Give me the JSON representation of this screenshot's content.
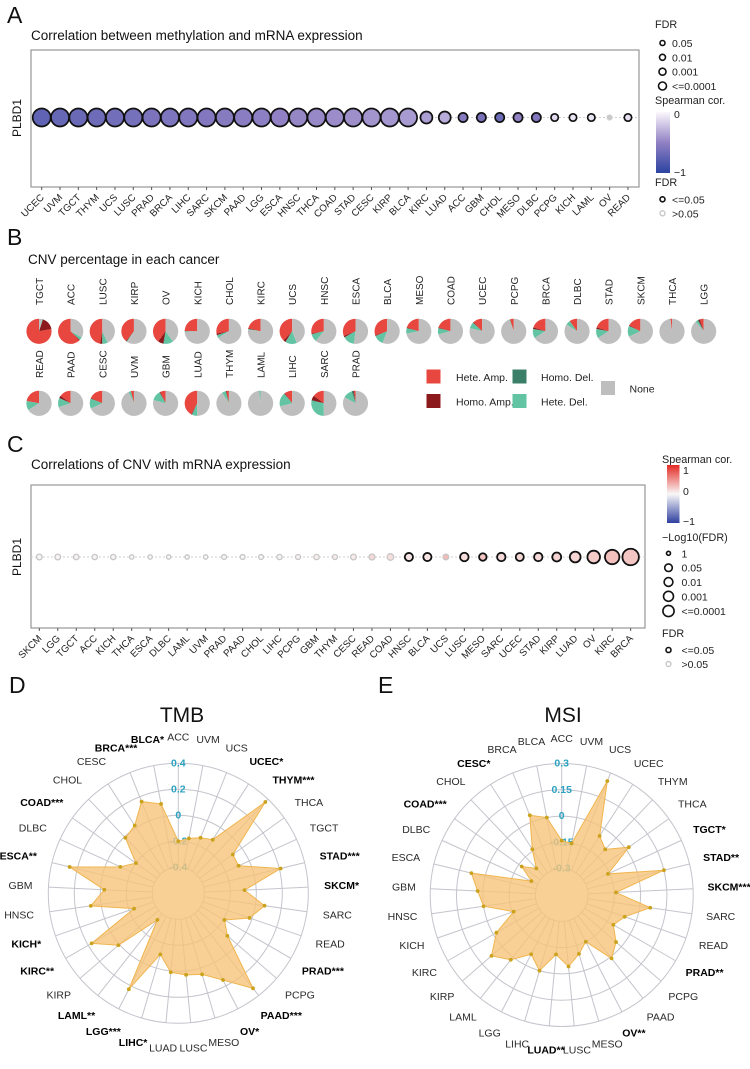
{
  "chart_data": [
    {
      "panel_label": "A",
      "type": "scatter",
      "title": "Correlation between methylation and mRNA expression",
      "xlabel": "",
      "ylabel": "PLBD1",
      "categories": [
        "UCEC",
        "UVM",
        "TGCT",
        "THYM",
        "UCS",
        "LUSC",
        "PRAD",
        "BRCA",
        "LIHC",
        "SARC",
        "SKCM",
        "PAAD",
        "LGG",
        "ESCA",
        "HNSC",
        "THCA",
        "COAD",
        "STAD",
        "CESC",
        "KIRP",
        "BLCA",
        "KIRC",
        "LUAD",
        "ACC",
        "GBM",
        "CHOL",
        "MESO",
        "DLBC",
        "PCPG",
        "KICH",
        "LAML",
        "OV",
        "READ"
      ],
      "spearman": [
        -0.74,
        -0.71,
        -0.69,
        -0.67,
        -0.65,
        -0.63,
        -0.61,
        -0.6,
        -0.58,
        -0.57,
        -0.55,
        -0.53,
        -0.52,
        -0.5,
        -0.48,
        -0.47,
        -0.45,
        -0.44,
        -0.42,
        -0.41,
        -0.39,
        -0.38,
        -0.32,
        -0.55,
        -0.62,
        -0.68,
        -0.5,
        -0.58,
        -0.12,
        -0.08,
        -0.08,
        -0.05,
        -0.1
      ],
      "fdr": [
        "<=0.0001",
        "<=0.0001",
        "<=0.0001",
        "<=0.0001",
        "<=0.0001",
        "<=0.0001",
        "<=0.0001",
        "<=0.0001",
        "<=0.0001",
        "<=0.0001",
        "<=0.0001",
        "<=0.0001",
        "<=0.0001",
        "<=0.0001",
        "<=0.0001",
        "<=0.0001",
        "<=0.0001",
        "<=0.0001",
        "<=0.0001",
        "<=0.0001",
        "<=0.0001",
        "0.001",
        "0.001",
        "0.01",
        "0.01",
        "0.01",
        "0.01",
        "0.01",
        "0.05",
        "0.05",
        "0.05",
        ">0.05",
        "0.05"
      ],
      "significant": [
        true,
        true,
        true,
        true,
        true,
        true,
        true,
        true,
        true,
        true,
        true,
        true,
        true,
        true,
        true,
        true,
        true,
        true,
        true,
        true,
        true,
        true,
        true,
        true,
        true,
        true,
        true,
        true,
        true,
        true,
        true,
        false,
        true
      ],
      "color_scale": {
        "range": [
          -1,
          0
        ],
        "low": "#2B43A0",
        "mid": "#9181C4",
        "high": "#FBF8FD",
        "not_significant": "#C9C9C9"
      },
      "legend": {
        "size_title": "FDR",
        "size_labels": [
          "0.05",
          "0.01",
          "0.001",
          "<=0.0001"
        ],
        "color_title": "Spearman cor.",
        "color_tick_labels": [
          "0",
          "−1"
        ],
        "sig_title": "FDR",
        "sig_labels": [
          "<=0.05",
          ">0.05"
        ]
      }
    },
    {
      "panel_label": "B",
      "type": "pie",
      "title": "CNV percentage in each cancer",
      "series": [
        "Hete. Amp.",
        "Homo. Amp.",
        "Homo. Del.",
        "Hete. Del.",
        "None"
      ],
      "colors": [
        "#E8473F",
        "#8C1A1C",
        "#3B7F69",
        "#63C4A3",
        "#BEBEBE"
      ],
      "categories": [
        "TGCT",
        "ACC",
        "LUSC",
        "KIRP",
        "OV",
        "KICH",
        "CHOL",
        "KIRC",
        "UCS",
        "HNSC",
        "ESCA",
        "BLCA",
        "MESO",
        "COAD",
        "UCEC",
        "PCPG",
        "BRCA",
        "DLBC",
        "STAD",
        "SKCM",
        "THCA",
        "LGG",
        "READ",
        "PAAD",
        "CESC",
        "UVM",
        "GBM",
        "LUAD",
        "THYM",
        "LAML",
        "LIHC",
        "SARC",
        "PRAD"
      ],
      "values": [
        [
          0.78,
          0.17,
          0,
          0.01,
          0.04
        ],
        [
          0.62,
          0.01,
          0,
          0.04,
          0.33
        ],
        [
          0.47,
          0.03,
          0,
          0.07,
          0.43
        ],
        [
          0.39,
          0.01,
          0,
          0.01,
          0.59
        ],
        [
          0.4,
          0.07,
          0.01,
          0.12,
          0.4
        ],
        [
          0.25,
          0,
          0,
          0.01,
          0.74
        ],
        [
          0.28,
          0.02,
          0,
          0.04,
          0.66
        ],
        [
          0.21,
          0.01,
          0,
          0.01,
          0.77
        ],
        [
          0.38,
          0.03,
          0,
          0.15,
          0.44
        ],
        [
          0.28,
          0.01,
          0,
          0.1,
          0.61
        ],
        [
          0.31,
          0.02,
          0,
          0.15,
          0.52
        ],
        [
          0.3,
          0.01,
          0,
          0.13,
          0.56
        ],
        [
          0.2,
          0.01,
          0,
          0.07,
          0.72
        ],
        [
          0.2,
          0.01,
          0,
          0.08,
          0.71
        ],
        [
          0.12,
          0.01,
          0,
          0.08,
          0.79
        ],
        [
          0.05,
          0,
          0,
          0.01,
          0.94
        ],
        [
          0.2,
          0.02,
          0,
          0.12,
          0.66
        ],
        [
          0.1,
          0,
          0,
          0.06,
          0.84
        ],
        [
          0.2,
          0.02,
          0,
          0.12,
          0.66
        ],
        [
          0.17,
          0.01,
          0,
          0.14,
          0.68
        ],
        [
          0.02,
          0,
          0,
          0,
          0.98
        ],
        [
          0.05,
          0.02,
          0.01,
          0.03,
          0.89
        ],
        [
          0.22,
          0,
          0,
          0.12,
          0.66
        ],
        [
          0.15,
          0.03,
          0,
          0.12,
          0.7
        ],
        [
          0.18,
          0.01,
          0,
          0.13,
          0.68
        ],
        [
          0.04,
          0,
          0,
          0.03,
          0.93
        ],
        [
          0.07,
          0.01,
          0,
          0.13,
          0.79
        ],
        [
          0.42,
          0.01,
          0,
          0.07,
          0.5
        ],
        [
          0.03,
          0.01,
          0,
          0.05,
          0.91
        ],
        [
          0,
          0,
          0,
          0.02,
          0.98
        ],
        [
          0.1,
          0.01,
          0,
          0.18,
          0.71
        ],
        [
          0.15,
          0.06,
          0.01,
          0.28,
          0.5
        ],
        [
          0.02,
          0.01,
          0.02,
          0.12,
          0.83
        ]
      ]
    },
    {
      "panel_label": "C",
      "type": "scatter",
      "title": "Correlations of CNV with mRNA expression",
      "xlabel": "",
      "ylabel": "PLBD1",
      "categories": [
        "SKCM",
        "LGG",
        "TGCT",
        "ACC",
        "KICH",
        "THCA",
        "ESCA",
        "DLBC",
        "LAML",
        "UVM",
        "PRAD",
        "PAAD",
        "CHOL",
        "LIHC",
        "PCPG",
        "GBM",
        "THYM",
        "CESC",
        "READ",
        "COAD",
        "HNSC",
        "BLCA",
        "UCS",
        "LUSC",
        "MESO",
        "SARC",
        "UCEC",
        "STAD",
        "KIRP",
        "LUAD",
        "OV",
        "KIRC",
        "BRCA"
      ],
      "spearman": [
        0.02,
        0.02,
        0.03,
        0.03,
        0.03,
        0.0,
        0.01,
        0.01,
        0.01,
        0.01,
        0.02,
        0.02,
        0.02,
        0.03,
        0.03,
        0.04,
        0.06,
        0.06,
        0.15,
        0.12,
        0.1,
        0.1,
        0.3,
        0.12,
        0.25,
        0.15,
        0.16,
        0.15,
        0.18,
        0.17,
        0.22,
        0.27,
        0.25
      ],
      "neg_log10_fdr": [
        0.65,
        0.65,
        0.6,
        0.5,
        0.5,
        0.15,
        0.15,
        0.15,
        0.15,
        0.15,
        0.35,
        0.35,
        0.35,
        0.5,
        0.4,
        0.5,
        0.4,
        0.65,
        0.75,
        1.0,
        1.6,
        1.6,
        0.65,
        1.75,
        1.35,
        1.7,
        1.55,
        1.7,
        1.9,
        2.6,
        3.3,
        4.0,
        4.8
      ],
      "significant": [
        false,
        false,
        false,
        false,
        false,
        false,
        false,
        false,
        false,
        false,
        false,
        false,
        false,
        false,
        false,
        false,
        false,
        false,
        false,
        false,
        true,
        true,
        false,
        true,
        true,
        true,
        true,
        true,
        true,
        true,
        true,
        true,
        true
      ],
      "color_scale": {
        "range": [
          -1,
          1
        ],
        "low": "#2E3F9F",
        "mid": "#F8F8F8",
        "high": "#E42A23"
      },
      "legend": {
        "color_title": "Spearman cor.",
        "color_tick_labels": [
          "1",
          "0",
          "−1"
        ],
        "size_title": "−Log10(FDR)",
        "size_labels": [
          "1",
          "0.05",
          "0.01",
          "0.001",
          "<=0.0001"
        ],
        "sig_title": "FDR",
        "sig_labels": [
          "<=0.05",
          ">0.05"
        ]
      }
    },
    {
      "panel_label": "D",
      "type": "area",
      "coordinate_system": "polar",
      "title": "TMB",
      "categories": [
        "ACC",
        "UVM",
        "UCS",
        "UCEC",
        "THYM",
        "THCA",
        "TGCT",
        "STAD",
        "SKCM",
        "SARC",
        "READ",
        "PRAD",
        "PCPG",
        "PAAD",
        "OV",
        "MESO",
        "LUSC",
        "LUAD",
        "LIHC",
        "LGG",
        "LAML",
        "KIRP",
        "KIRC",
        "KICH",
        "HNSC",
        "GBM",
        "ESCA",
        "DLBC",
        "COAD",
        "CHOL",
        "CESC",
        "BRCA",
        "BLCA"
      ],
      "values": [
        -0.2,
        -0.17,
        -0.14,
        -0.11,
        0.37,
        -0.085,
        -0.09,
        0.21,
        -0.09,
        0.07,
        -0.02,
        -0.19,
        -0.1,
        0.33,
        0.15,
        0.05,
        0.03,
        0.01,
        -0.11,
        0.23,
        -0.34,
        0.01,
        0.17,
        -0.24,
        0.08,
        -0.03,
        0.26,
        -0.11,
        -0.2,
        -0.01,
        0.02,
        0.16,
        0.1
      ],
      "significance": [
        "",
        "",
        "",
        "*",
        "***",
        "",
        "",
        "***",
        "*",
        "",
        "",
        "***",
        "",
        "***",
        "*",
        "",
        "",
        "",
        "*",
        "***",
        "**",
        "",
        "**",
        "*",
        "",
        "",
        "**",
        "",
        "***",
        "",
        "",
        "***",
        "*"
      ],
      "rlim": [
        -0.6,
        0.4
      ],
      "ticks": [
        -0.4,
        -0.2,
        0,
        0.2,
        0.4
      ],
      "tick_labels": [
        "-0.4",
        "-0.2",
        "0",
        "0.2",
        "0.4"
      ],
      "fill_color": "#F6C47B",
      "point_color": "#CBA21C"
    },
    {
      "panel_label": "E",
      "type": "area",
      "coordinate_system": "polar",
      "title": "MSI",
      "categories": [
        "ACC",
        "UVM",
        "UCS",
        "UCEC",
        "THYM",
        "THCA",
        "TGCT",
        "STAD",
        "SKCM",
        "SARC",
        "READ",
        "PRAD",
        "PCPG",
        "PAAD",
        "OV",
        "MESO",
        "LUSC",
        "LUAD",
        "LIHC",
        "LGG",
        "LAML",
        "KIRP",
        "KIRC",
        "KICH",
        "HNSC",
        "GBM",
        "ESCA",
        "DLBC",
        "COAD",
        "CHOL",
        "CESC",
        "BRCA",
        "BLCA"
      ],
      "values": [
        -0.14,
        -0.15,
        0.25,
        -0.05,
        -0.09,
        0.02,
        -0.16,
        0.15,
        -0.14,
        0.06,
        -0.07,
        -0.11,
        -0.04,
        0.01,
        -0.15,
        -0.1,
        -0.04,
        -0.11,
        0.0,
        -0.07,
        0.02,
        0.08,
        -0.02,
        -0.16,
        0.0,
        0.03,
        0.08,
        -0.26,
        -0.17,
        -0.24,
        -0.14,
        0.04,
        0.0
      ],
      "significance": [
        "",
        "",
        "",
        "",
        "",
        "",
        "*",
        "**",
        "***",
        "",
        "",
        "**",
        "",
        "",
        "**",
        "",
        "",
        "**",
        "",
        "",
        "",
        "",
        "",
        "",
        "",
        "",
        "",
        "",
        "***",
        "",
        "*",
        "",
        ""
      ],
      "rlim": [
        -0.45,
        0.3
      ],
      "ticks": [
        -0.3,
        -0.15,
        0,
        0.15,
        0.3
      ],
      "tick_labels": [
        "-0.3",
        "-0.15",
        "0",
        "0.15",
        "0.3"
      ],
      "fill_color": "#F6C47B",
      "point_color": "#CBA21C"
    }
  ]
}
